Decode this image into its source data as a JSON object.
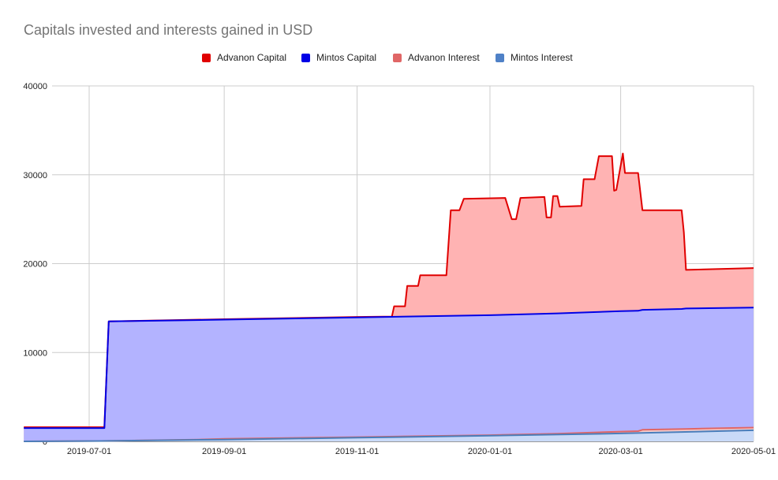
{
  "chart_data": {
    "type": "area",
    "title": "Capitals invested and interests gained in USD",
    "xlabel": "",
    "ylabel": "",
    "x_type": "date",
    "xlim": [
      "2019-06-01",
      "2020-05-01"
    ],
    "ylim": [
      0,
      40000
    ],
    "x_ticks": [
      "2019-07-01",
      "2019-09-01",
      "2019-11-01",
      "2020-01-01",
      "2020-03-01",
      "2020-05-01"
    ],
    "y_ticks": [
      0,
      10000,
      20000,
      30000,
      40000
    ],
    "grid": true,
    "legend_position": "top",
    "stacked": false,
    "series": [
      {
        "name": "Advanon Capital",
        "color": "#e00000",
        "fill": "#ffb3b3",
        "points": [
          [
            "2019-06-01",
            1600
          ],
          [
            "2019-07-08",
            1600
          ],
          [
            "2019-07-08",
            1700
          ],
          [
            "2019-07-10",
            13500
          ],
          [
            "2019-09-01",
            13750
          ],
          [
            "2019-11-01",
            14000
          ],
          [
            "2019-11-17",
            14050
          ],
          [
            "2019-11-18",
            15200
          ],
          [
            "2019-11-23",
            15200
          ],
          [
            "2019-11-24",
            17500
          ],
          [
            "2019-11-29",
            17500
          ],
          [
            "2019-11-30",
            18700
          ],
          [
            "2019-12-12",
            18700
          ],
          [
            "2019-12-14",
            26000
          ],
          [
            "2019-12-18",
            26000
          ],
          [
            "2019-12-20",
            27300
          ],
          [
            "2020-01-08",
            27400
          ],
          [
            "2020-01-11",
            25000
          ],
          [
            "2020-01-13",
            25000
          ],
          [
            "2020-01-15",
            27400
          ],
          [
            "2020-01-26",
            27500
          ],
          [
            "2020-01-27",
            25200
          ],
          [
            "2020-01-29",
            25200
          ],
          [
            "2020-01-30",
            27600
          ],
          [
            "2020-02-01",
            27600
          ],
          [
            "2020-02-02",
            26400
          ],
          [
            "2020-02-12",
            26500
          ],
          [
            "2020-02-13",
            29500
          ],
          [
            "2020-02-18",
            29500
          ],
          [
            "2020-02-20",
            32100
          ],
          [
            "2020-02-26",
            32100
          ],
          [
            "2020-02-27",
            28200
          ],
          [
            "2020-02-28",
            28300
          ],
          [
            "2020-03-02",
            32400
          ],
          [
            "2020-03-03",
            30200
          ],
          [
            "2020-03-09",
            30200
          ],
          [
            "2020-03-11",
            26000
          ],
          [
            "2020-03-29",
            26000
          ],
          [
            "2020-03-30",
            23500
          ],
          [
            "2020-03-31",
            19300
          ],
          [
            "2020-05-01",
            19500
          ]
        ]
      },
      {
        "name": "Mintos Capital",
        "color": "#0000e6",
        "fill": "#b3b3ff",
        "points": [
          [
            "2019-06-01",
            1500
          ],
          [
            "2019-07-08",
            1500
          ],
          [
            "2019-07-10",
            13500
          ],
          [
            "2019-09-01",
            13700
          ],
          [
            "2019-11-01",
            13950
          ],
          [
            "2020-01-01",
            14200
          ],
          [
            "2020-02-01",
            14400
          ],
          [
            "2020-03-01",
            14650
          ],
          [
            "2020-03-09",
            14700
          ],
          [
            "2020-03-11",
            14800
          ],
          [
            "2020-03-29",
            14900
          ],
          [
            "2020-03-31",
            14950
          ],
          [
            "2020-05-01",
            15050
          ]
        ]
      },
      {
        "name": "Advanon Interest",
        "color": "#e06666",
        "fill": "#f4cccc",
        "points": [
          [
            "2019-06-01",
            0
          ],
          [
            "2019-07-10",
            50
          ],
          [
            "2019-08-20",
            200
          ],
          [
            "2019-09-01",
            280
          ],
          [
            "2019-11-01",
            480
          ],
          [
            "2020-01-01",
            700
          ],
          [
            "2020-02-01",
            870
          ],
          [
            "2020-03-01",
            1100
          ],
          [
            "2020-03-09",
            1150
          ],
          [
            "2020-03-11",
            1300
          ],
          [
            "2020-03-31",
            1400
          ],
          [
            "2020-05-01",
            1550
          ]
        ]
      },
      {
        "name": "Mintos Interest",
        "color": "#4a7ebb",
        "fill": "#c9daf8",
        "points": [
          [
            "2019-06-01",
            0
          ],
          [
            "2019-07-10",
            50
          ],
          [
            "2019-09-01",
            200
          ],
          [
            "2019-11-01",
            420
          ],
          [
            "2020-01-01",
            640
          ],
          [
            "2020-03-01",
            900
          ],
          [
            "2020-05-01",
            1250
          ]
        ]
      }
    ]
  }
}
